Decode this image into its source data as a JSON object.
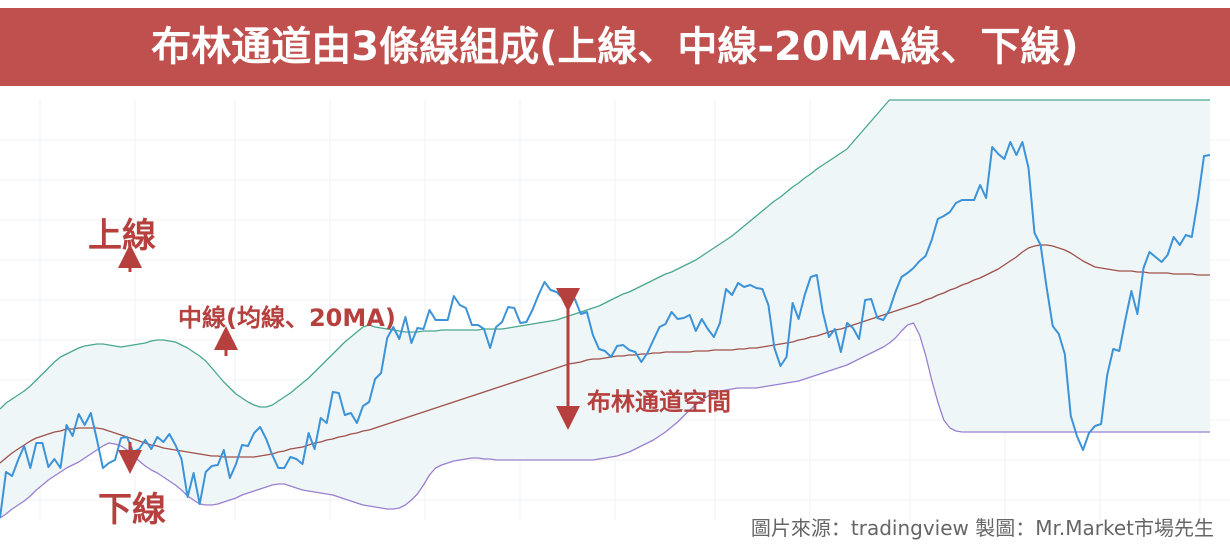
{
  "title": "布林通道由3條線組成(上線、中線-20MA線、下線)",
  "annotations": {
    "upper": "上線",
    "middle": "中線(均線、20MA)",
    "lower": "下線",
    "space": "布林通道空間"
  },
  "credit": "圖片來源：tradingview  製圖：Mr.Market市場先生",
  "colors": {
    "title_bg": "#c0504d",
    "annotation": "#b5403d",
    "price": "#3d93d8",
    "upper_band": "#48a78f",
    "middle_band": "#a0504a",
    "lower_band": "#9a7fcf",
    "band_fill": "#eef6f7",
    "grid": "#eef0f3"
  },
  "chart_data": {
    "type": "line",
    "title": "",
    "xlabel": "",
    "ylabel": "",
    "grid": true,
    "x": [
      0,
      1,
      2,
      3,
      4,
      5,
      6,
      7,
      8,
      9,
      10,
      11,
      12,
      13,
      14,
      15,
      16,
      17,
      18,
      19,
      20,
      21,
      22,
      23,
      24,
      25,
      26,
      27,
      28,
      29,
      30,
      31,
      32,
      33,
      34,
      35,
      36,
      37,
      38,
      39,
      40,
      41,
      42,
      43,
      44,
      45,
      46,
      47,
      48,
      49,
      50,
      51,
      52,
      53,
      54,
      55,
      56,
      57,
      58,
      59,
      60,
      61,
      62,
      63,
      64,
      65,
      66,
      67,
      68,
      69,
      70,
      71,
      72,
      73,
      74,
      75,
      76,
      77,
      78,
      79,
      80,
      81,
      82,
      83,
      84,
      85,
      86,
      87,
      88,
      89,
      90,
      91,
      92,
      93,
      94,
      95,
      96,
      97,
      98,
      99,
      100,
      101,
      102,
      103,
      104,
      105,
      106,
      107,
      108,
      109,
      110,
      111,
      112,
      113,
      114,
      115,
      116,
      117,
      118,
      119,
      120,
      121,
      122,
      123,
      124,
      125,
      126,
      127,
      128,
      129,
      130,
      131,
      132,
      133,
      134,
      135,
      136,
      137,
      138,
      139,
      140,
      141,
      142,
      143,
      144,
      145,
      146,
      147,
      148,
      149,
      150,
      151,
      152,
      153,
      154,
      155,
      156,
      157,
      158,
      159,
      160,
      161,
      162,
      163,
      164,
      165,
      166,
      167,
      168,
      169,
      170,
      171,
      172,
      173,
      174,
      175,
      176,
      177,
      178,
      179,
      180,
      181,
      182,
      183,
      184,
      185,
      186,
      187,
      188,
      189,
      190,
      191,
      192,
      193,
      194,
      195,
      196,
      197,
      198,
      199,
      200
    ],
    "series": [
      {
        "values": [
          2,
          48,
          44,
          60,
          74,
          52,
          77,
          77,
          53,
          61,
          52,
          95,
          84,
          106,
          95,
          107,
          81,
          52,
          57,
          60,
          82,
          83,
          68,
          71,
          80,
          71,
          83,
          78,
          86,
          75,
          61,
          23,
          47,
          16,
          48,
          54,
          55,
          70,
          42,
          56,
          75,
          74,
          87,
          93,
          81,
          65,
          52,
          52,
          63,
          61,
          56,
          87,
          71,
          102,
          97,
          128,
          127,
          105,
          107,
          97,
          114,
          118,
          141,
          147,
          182,
          193,
          181,
          203,
          177,
          192,
          191,
          210,
          200,
          200,
          200,
          224,
          215,
          212,
          195,
          195,
          191,
          172,
          193,
          198,
          213,
          212,
          197,
          198,
          210,
          225,
          238,
          230,
          228,
          222,
          221,
          221,
          206,
          208,
          185,
          171,
          169,
          163,
          174,
          175,
          170,
          168,
          158,
          167,
          180,
          193,
          196,
          208,
          201,
          202,
          205,
          189,
          201,
          191,
          183,
          197,
          231,
          225,
          237,
          233,
          235,
          232,
          231,
          215,
          172,
          154,
          163,
          217,
          201,
          225,
          243,
          245,
          208,
          183,
          191,
          168,
          197,
          192,
          181,
          220,
          221,
          202,
          200,
          210,
          228,
          243,
          247,
          252,
          259,
          264,
          280,
          301,
          304,
          308,
          317,
          320,
          320,
          320,
          335,
          322,
          373,
          366,
          361,
          378,
          365,
          378,
          352,
          287,
          275,
          232,
          194,
          186,
          166,
          104,
          84,
          70,
          87,
          94,
          96,
          145,
          171,
          169,
          200,
          229,
          206,
          252,
          268,
          263,
          258,
          265,
          283,
          275,
          285,
          283,
          320,
          364,
          365
        ]
      },
      {
        "values": [
          57,
          62,
          67,
          71,
          75,
          79,
          82,
          84,
          86,
          88,
          89,
          91,
          91,
          92,
          92,
          92,
          92,
          91,
          89,
          87,
          85,
          83,
          81,
          79,
          77,
          75,
          74,
          72,
          71,
          70,
          69,
          68,
          67,
          66,
          65,
          64,
          64,
          63,
          63,
          63,
          63,
          63,
          63,
          64,
          65,
          66,
          68,
          69,
          71,
          72,
          73,
          75,
          77,
          78,
          80,
          81,
          83,
          84,
          86,
          87,
          89,
          90,
          92,
          94,
          96,
          98,
          100,
          102,
          104,
          106,
          108,
          110,
          112,
          114,
          116,
          118,
          120,
          122,
          124,
          126,
          128,
          130,
          132,
          134,
          136,
          138,
          140,
          142,
          144,
          146,
          148,
          150,
          152,
          154,
          156,
          157,
          158,
          160,
          161,
          161,
          162,
          163,
          164,
          164,
          165,
          165,
          166,
          166,
          167,
          167,
          168,
          168,
          168,
          168,
          168,
          169,
          169,
          169,
          170,
          170,
          170,
          170,
          171,
          171,
          172,
          172,
          173,
          174,
          175,
          176,
          177,
          178,
          180,
          181,
          183,
          184,
          186,
          188,
          190,
          191,
          193,
          195,
          197,
          199,
          201,
          203,
          205,
          207,
          209,
          211,
          213,
          215,
          217,
          220,
          222,
          225,
          227,
          230,
          232,
          235,
          237,
          240,
          242,
          245,
          248,
          251,
          255,
          259,
          263,
          268,
          272,
          274,
          275,
          275,
          274,
          272,
          270,
          267,
          263,
          259,
          256,
          253,
          252,
          251,
          250,
          249,
          249,
          249,
          248,
          248,
          247,
          247,
          247,
          247,
          246,
          246,
          246,
          246,
          245,
          245,
          245
        ]
      },
      {
        "values": [
          111,
          117,
          121,
          125,
          129,
          134,
          140,
          146,
          152,
          158,
          163,
          166,
          169,
          172,
          174,
          175,
          176,
          176,
          175,
          174,
          173,
          174,
          175,
          176,
          177,
          179,
          180,
          180,
          179,
          178,
          175,
          172,
          168,
          164,
          159,
          152,
          145,
          138,
          132,
          126,
          122,
          118,
          115,
          113,
          113,
          115,
          119,
          123,
          127,
          132,
          137,
          142,
          148,
          154,
          160,
          166,
          172,
          178,
          183,
          188,
          193,
          195,
          193,
          192,
          191,
          190,
          189,
          188,
          188,
          188,
          189,
          189,
          189,
          190,
          190,
          190,
          190,
          190,
          190,
          190,
          191,
          191,
          191,
          191,
          192,
          193,
          194,
          195,
          196,
          197,
          198,
          199,
          200,
          202,
          204,
          206,
          208,
          210,
          212,
          214,
          217,
          220,
          223,
          226,
          228,
          231,
          234,
          237,
          240,
          243,
          246,
          248,
          251,
          254,
          257,
          260,
          264,
          268,
          272,
          276,
          280,
          284,
          289,
          294,
          299,
          304,
          309,
          314,
          319,
          323,
          328,
          333,
          337,
          342,
          346,
          351,
          355,
          359,
          363,
          367,
          371,
          378,
          385,
          392,
          399,
          406,
          413,
          420,
          427,
          431,
          433,
          433,
          432,
          432,
          432,
          432,
          432,
          432,
          432,
          432,
          432,
          432,
          432,
          432,
          432,
          432,
          432,
          432,
          432,
          432,
          432,
          432,
          432,
          432,
          432,
          432,
          432,
          432,
          432,
          432,
          432,
          432,
          432,
          432,
          432,
          432,
          432,
          432,
          432,
          432,
          432,
          432,
          432,
          432,
          432,
          432,
          432,
          432,
          432,
          432,
          432
        ]
      },
      {
        "values": [
          2,
          6,
          11,
          15,
          19,
          24,
          30,
          35,
          40,
          44,
          48,
          52,
          55,
          58,
          62,
          66,
          70,
          74,
          77,
          76,
          74,
          70,
          64,
          59,
          54,
          50,
          47,
          43,
          39,
          35,
          30,
          24,
          20,
          16,
          15,
          15,
          16,
          18,
          20,
          22,
          25,
          27,
          29,
          31,
          33,
          35,
          36,
          36,
          34,
          32,
          30,
          29,
          28,
          27,
          26,
          25,
          23,
          21,
          19,
          17,
          15,
          14,
          13,
          12,
          11,
          11,
          12,
          15,
          20,
          26,
          35,
          45,
          52,
          55,
          57,
          59,
          60,
          61,
          62,
          62,
          61,
          61,
          60,
          60,
          60,
          60,
          60,
          60,
          60,
          60,
          60,
          60,
          60,
          60,
          60,
          60,
          60,
          60,
          60,
          61,
          62,
          63,
          64,
          66,
          68,
          71,
          74,
          77,
          80,
          84,
          88,
          93,
          98,
          104,
          110,
          115,
          120,
          124,
          127,
          129,
          130,
          131,
          132,
          132,
          132,
          132,
          133,
          134,
          135,
          136,
          137,
          138,
          139,
          141,
          143,
          145,
          147,
          149,
          151,
          153,
          155,
          158,
          161,
          164,
          167,
          170,
          173,
          177,
          182,
          189,
          195,
          197,
          185,
          165,
          140,
          118,
          100,
          92,
          89,
          88,
          88,
          88,
          88,
          88,
          88,
          88,
          88,
          88,
          88,
          88,
          88,
          88,
          88,
          88,
          88,
          88,
          88,
          88,
          88,
          88,
          88,
          88,
          88,
          88,
          88,
          88,
          88,
          88,
          88,
          88,
          88,
          88,
          88,
          88,
          88,
          88,
          88,
          88,
          88,
          88,
          88
        ]
      }
    ]
  }
}
